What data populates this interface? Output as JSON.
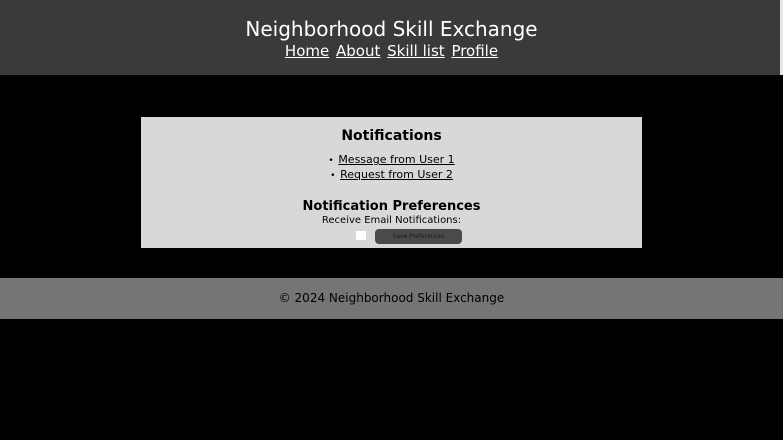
{
  "header": {
    "title": "Neighborhood Skill Exchange",
    "nav": [
      {
        "label": "Home"
      },
      {
        "label": "About"
      },
      {
        "label": "Skill list"
      },
      {
        "label": "Profile"
      }
    ]
  },
  "notifications": {
    "heading": "Notifications",
    "items": [
      {
        "label": "Message from User 1"
      },
      {
        "label": "Request from User 2"
      }
    ]
  },
  "preferences": {
    "heading": "Notification Preferences",
    "email_label": "Receive Email Notifications:",
    "email_checked": false,
    "save_label": "Save Preferences"
  },
  "footer": {
    "text": "© 2024 Neighborhood Skill Exchange"
  },
  "colors": {
    "header_bg": "#3a3a3a",
    "page_bg": "#000000",
    "panel_bg": "#d8d8d8",
    "button_bg": "#4a4a4a",
    "footer_bg": "#757575"
  }
}
